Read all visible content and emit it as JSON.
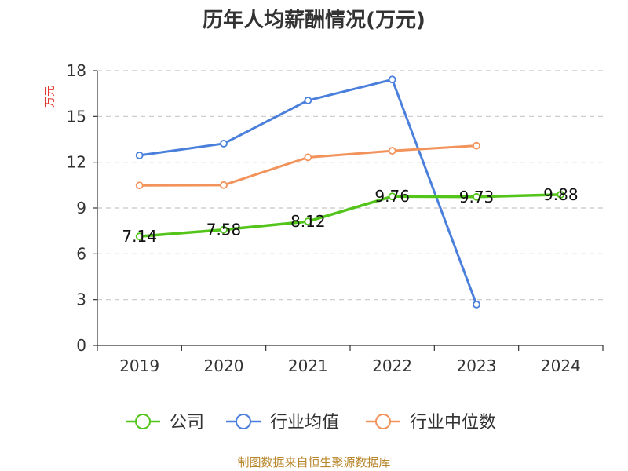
{
  "chart_data": {
    "type": "line",
    "title": "历年人均薪酬情况(万元)",
    "ylabel": "万元",
    "xlabel": "",
    "categories": [
      "2019",
      "2020",
      "2021",
      "2022",
      "2023",
      "2024"
    ],
    "ylim": [
      0,
      18
    ],
    "yticks": [
      0,
      3,
      6,
      9,
      12,
      15,
      18
    ],
    "grid": true,
    "legend_position": "bottom",
    "series": [
      {
        "name": "公司",
        "color": "#52c41a",
        "values": [
          7.14,
          7.58,
          8.12,
          9.76,
          9.73,
          9.88
        ],
        "labels": [
          "7.14",
          "7.58",
          "8.12",
          "9.76",
          "9.73",
          "9.88"
        ]
      },
      {
        "name": "行业均值",
        "color": "#4a7fdb",
        "values": [
          12.45,
          13.22,
          16.05,
          17.42,
          2.68,
          null
        ]
      },
      {
        "name": "行业中位数",
        "color": "#f2935c",
        "values": [
          10.48,
          10.5,
          12.32,
          12.75,
          13.08,
          null
        ]
      }
    ]
  },
  "source": "制图数据来自恒生聚源数据库"
}
